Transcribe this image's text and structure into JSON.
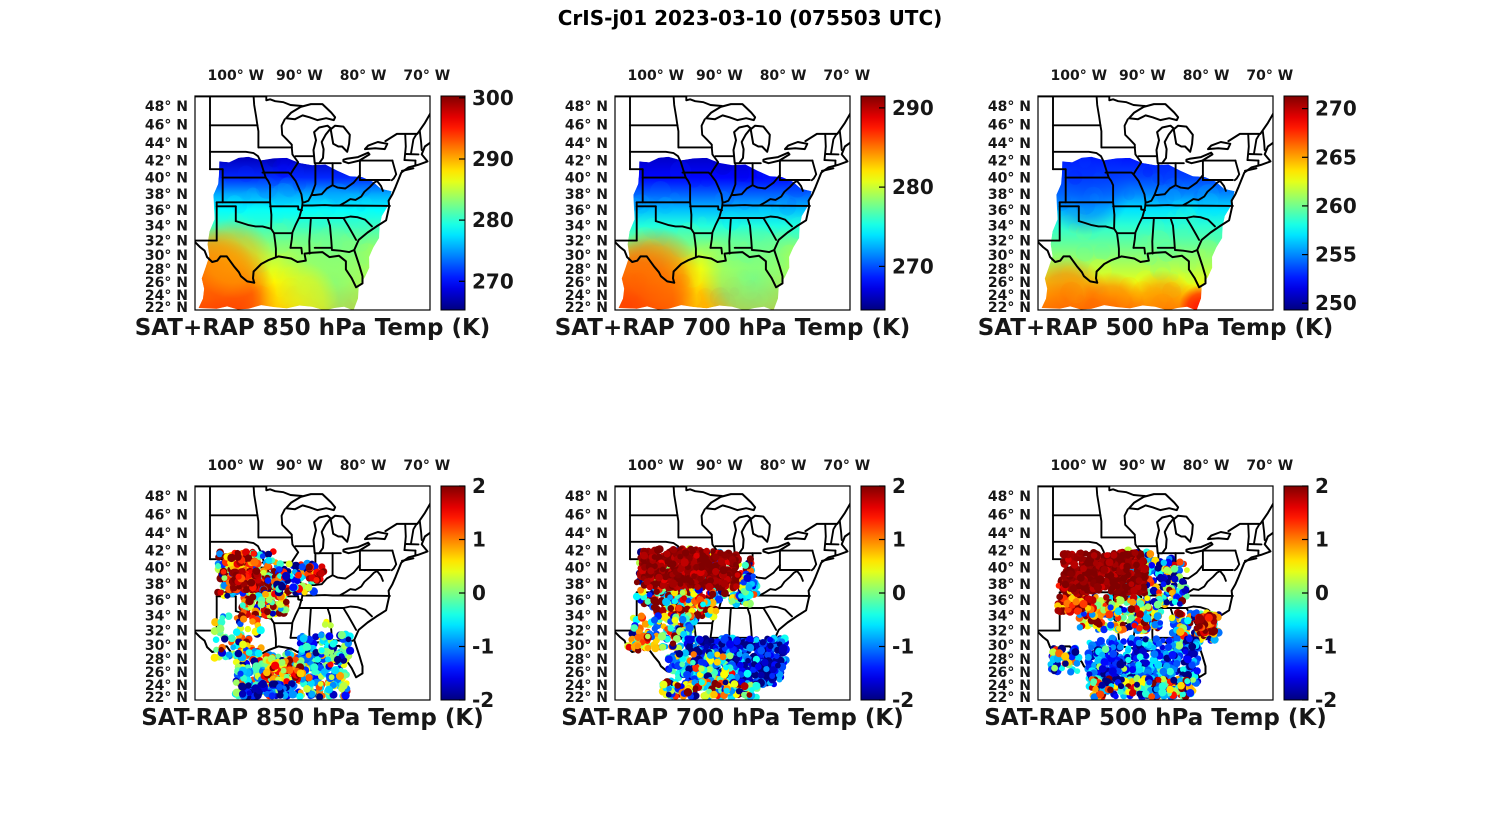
{
  "chart_data": {
    "type": "map-grid",
    "figure_title": "CrIS-j01 2023-03-10 (075503 UTC)",
    "colormap": "jet",
    "axes": {
      "lon_range_w_deg": [
        106.4,
        69.5
      ],
      "lat_range_n_deg": [
        21.5,
        49.4
      ],
      "lon_ticks": [
        {
          "value": 100,
          "label": "100° W"
        },
        {
          "value": 90,
          "label": "90° W"
        },
        {
          "value": 80,
          "label": "80° W"
        },
        {
          "value": 70,
          "label": "70° W"
        }
      ],
      "lat_ticks": [
        {
          "value": 48,
          "label": "48° N"
        },
        {
          "value": 46,
          "label": "46° N"
        },
        {
          "value": 44,
          "label": "44° N"
        },
        {
          "value": 42,
          "label": "42° N"
        },
        {
          "value": 40,
          "label": "40° N"
        },
        {
          "value": 38,
          "label": "38° N"
        },
        {
          "value": 36,
          "label": "36° N"
        },
        {
          "value": 34,
          "label": "34° N"
        },
        {
          "value": 32,
          "label": "32° N"
        },
        {
          "value": 30,
          "label": "30° N"
        },
        {
          "value": 28,
          "label": "28° N"
        },
        {
          "value": 26,
          "label": "26° N"
        },
        {
          "value": 24,
          "label": "24° N"
        },
        {
          "value": 22,
          "label": "22° N"
        }
      ]
    },
    "swath_polygon": [
      [
        102.6,
        41.9
      ],
      [
        98,
        42.3
      ],
      [
        94,
        42.25
      ],
      [
        90,
        41.9
      ],
      [
        86,
        41.3
      ],
      [
        82,
        40.4
      ],
      [
        78.5,
        39.4
      ],
      [
        75.6,
        38.4
      ],
      [
        76.8,
        35.2
      ],
      [
        78.3,
        31.0
      ],
      [
        79.8,
        26.8
      ],
      [
        81.5,
        21.7
      ],
      [
        86,
        21.8
      ],
      [
        92,
        22.1
      ],
      [
        98,
        21.9
      ],
      [
        103,
        21.7
      ],
      [
        105.5,
        21.8
      ],
      [
        105.0,
        26.5
      ],
      [
        104.2,
        31.5
      ],
      [
        103.4,
        36.5
      ]
    ],
    "panels": [
      {
        "id": "sat-plus-rap-850",
        "title": "SAT+RAP 850 hPa Temp (K)",
        "row": 0,
        "col": 0,
        "type": "field",
        "colorbar": {
          "min": 265.3,
          "max": 300.3,
          "ticks": [
            300,
            290,
            280,
            270
          ],
          "tick_labels": [
            "300",
            "290",
            "280",
            "270"
          ]
        },
        "profile": [
          [
            42.3,
            267.5
          ],
          [
            40,
            271
          ],
          [
            38,
            275.5
          ],
          [
            36,
            278.5
          ],
          [
            34,
            280.5
          ],
          [
            32,
            282.5
          ],
          [
            30,
            284.5
          ],
          [
            28,
            286
          ],
          [
            26,
            287.5
          ],
          [
            24,
            289
          ],
          [
            21.6,
            290
          ]
        ],
        "hotspots": [
          {
            "lon": 103.2,
            "lat": 23.2,
            "r": 62,
            "value": 294.5,
            "opacity": 0.95
          },
          {
            "lon": 104,
            "lat": 27.5,
            "r": 45,
            "value": 292,
            "opacity": 0.8
          },
          {
            "lon": 100.5,
            "lat": 29.5,
            "r": 40,
            "value": 290,
            "opacity": 0.65
          },
          {
            "lon": 84.5,
            "lat": 26,
            "r": 60,
            "value": 282,
            "opacity": 0.75
          },
          {
            "lon": 90,
            "lat": 23,
            "r": 40,
            "value": 287.5,
            "opacity": 0.6
          }
        ]
      },
      {
        "id": "sat-plus-rap-700",
        "title": "SAT+RAP 700 hPa Temp (K)",
        "row": 0,
        "col": 1,
        "type": "field",
        "colorbar": {
          "min": 264.5,
          "max": 291.5,
          "ticks": [
            290,
            280,
            270
          ],
          "tick_labels": [
            "290",
            "280",
            "270"
          ]
        },
        "profile": [
          [
            42.3,
            266.5
          ],
          [
            40,
            268
          ],
          [
            38,
            270.5
          ],
          [
            36,
            273
          ],
          [
            34,
            275.5
          ],
          [
            32,
            277.5
          ],
          [
            30,
            279.5
          ],
          [
            28,
            281
          ],
          [
            26,
            282
          ],
          [
            24,
            283
          ],
          [
            21.6,
            283.5
          ]
        ],
        "hotspots": [
          {
            "lon": 103,
            "lat": 23.5,
            "r": 60,
            "value": 287,
            "opacity": 0.9
          },
          {
            "lon": 100,
            "lat": 27.5,
            "r": 45,
            "value": 285,
            "opacity": 0.7
          },
          {
            "lon": 84.5,
            "lat": 26.5,
            "r": 55,
            "value": 276.5,
            "opacity": 0.7
          }
        ]
      },
      {
        "id": "sat-plus-rap-500",
        "title": "SAT+RAP 500 hPa Temp (K)",
        "row": 0,
        "col": 2,
        "type": "field",
        "colorbar": {
          "min": 249.3,
          "max": 271.3,
          "ticks": [
            270,
            265,
            260,
            255,
            250
          ],
          "tick_labels": [
            "270",
            "265",
            "260",
            "255",
            "250"
          ]
        },
        "profile": [
          [
            42.3,
            252.5
          ],
          [
            40,
            253.5
          ],
          [
            38,
            255
          ],
          [
            36,
            257
          ],
          [
            34,
            258.5
          ],
          [
            32,
            259.5
          ],
          [
            30,
            260.5
          ],
          [
            28,
            261.5
          ],
          [
            26,
            262.5
          ],
          [
            24,
            264
          ],
          [
            21.6,
            265.5
          ]
        ],
        "hotspots": [
          {
            "lon": 102,
            "lat": 23,
            "r": 45,
            "value": 266.5,
            "opacity": 0.75
          },
          {
            "lon": 95,
            "lat": 22,
            "r": 35,
            "value": 266.5,
            "opacity": 0.7
          },
          {
            "lon": 87,
            "lat": 22.3,
            "r": 35,
            "value": 266,
            "opacity": 0.65
          },
          {
            "lon": 80.8,
            "lat": 22,
            "r": 22,
            "value": 268.5,
            "opacity": 0.9
          },
          {
            "lon": 99,
            "lat": 38.5,
            "r": 45,
            "value": 253,
            "opacity": 0.5
          }
        ]
      },
      {
        "id": "sat-minus-rap-850",
        "title": "SAT-RAP 850 hPa Temp (K)",
        "row": 1,
        "col": 0,
        "type": "scatter",
        "colorbar": {
          "min": -2,
          "max": 2,
          "ticks": [
            2,
            1,
            0,
            -1,
            -2
          ],
          "tick_labels": [
            "2",
            "1",
            "0",
            "-1",
            "-2"
          ]
        },
        "clusters": [
          {
            "lat": [
              36.5,
              41.9
            ],
            "lon": [
              103,
              93.5
            ],
            "n": 220,
            "mean": 0.4,
            "sd": 1.5
          },
          {
            "lat": [
              34,
              37
            ],
            "lon": [
              99,
              92
            ],
            "n": 100,
            "mean": 1.0,
            "sd": 1.2
          },
          {
            "lat": [
              37,
              40.5
            ],
            "lon": [
              93.5,
              87.5
            ],
            "n": 80,
            "mean": -0.6,
            "sd": 1.1
          },
          {
            "lat": [
              28,
              34
            ],
            "lon": [
              103.5,
              96
            ],
            "n": 80,
            "mean": 0.1,
            "sd": 1.2
          },
          {
            "lat": [
              22,
              29
            ],
            "lon": [
              100,
              82.5
            ],
            "n": 340,
            "mean": -0.5,
            "sd": 0.9
          },
          {
            "lat": [
              27.5,
              31.5
            ],
            "lon": [
              90,
              82
            ],
            "n": 80,
            "mean": -0.9,
            "sd": 0.8
          },
          {
            "lat": [
              24.5,
              28
            ],
            "lon": [
              95.5,
              89.5
            ],
            "n": 90,
            "mean": 1.0,
            "sd": 0.7
          },
          {
            "lat": [
              22,
              24.2
            ],
            "lon": [
              99,
              91
            ],
            "n": 60,
            "mean": -1.7,
            "sd": 0.4
          },
          {
            "lat": [
              39.5,
              41.8
            ],
            "lon": [
              102,
              97
            ],
            "n": 60,
            "mean": 1.5,
            "sd": 0.8
          },
          {
            "lat": [
              37.3,
              39.6
            ],
            "lon": [
              100.5,
              96.5
            ],
            "n": 130,
            "mean": 1.9,
            "sd": 0.4
          },
          {
            "lat": [
              38.5,
              40.3
            ],
            "lon": [
              89,
              86
            ],
            "n": 20,
            "mean": 1.7,
            "sd": 0.4
          },
          {
            "lat": [
              32.6,
              33.4
            ],
            "lon": [
              86,
              85
            ],
            "n": 3,
            "mean": 0.1,
            "sd": 0.3
          }
        ]
      },
      {
        "id": "sat-minus-rap-700",
        "title": "SAT-RAP 700 hPa Temp (K)",
        "row": 1,
        "col": 1,
        "type": "scatter",
        "colorbar": {
          "min": -2,
          "max": 2,
          "ticks": [
            2,
            1,
            0,
            -1,
            -2
          ],
          "tick_labels": [
            "2",
            "1",
            "0",
            "-1",
            "-2"
          ]
        },
        "clusters": [
          {
            "lat": [
              35.5,
              42.2
            ],
            "lon": [
              103,
              85
            ],
            "n": 230,
            "mean": 0.4,
            "sd": 1.5
          },
          {
            "lat": [
              33.5,
              37.5
            ],
            "lon": [
              100.5,
              90.5
            ],
            "n": 160,
            "mean": 0.9,
            "sd": 1.2
          },
          {
            "lat": [
              29.5,
              34
            ],
            "lon": [
              104,
              94
            ],
            "n": 120,
            "mean": -0.2,
            "sd": 1.2
          },
          {
            "lat": [
              24,
              31
            ],
            "lon": [
              95,
              79.5
            ],
            "n": 470,
            "mean": -1.55,
            "sd": 0.55
          },
          {
            "lat": [
              24,
              29
            ],
            "lon": [
              98,
              88
            ],
            "n": 150,
            "mean": -0.5,
            "sd": 1.0
          },
          {
            "lat": [
              21.8,
              24.5
            ],
            "lon": [
              99,
              84
            ],
            "n": 160,
            "mean": 0.2,
            "sd": 1.4
          },
          {
            "lat": [
              36,
              39
            ],
            "lon": [
              87,
              84
            ],
            "n": 45,
            "mean": -1.0,
            "sd": 0.9
          },
          {
            "lat": [
              29,
              31.5
            ],
            "lon": [
              104.5,
              101
            ],
            "n": 30,
            "mean": 0.9,
            "sd": 0.9
          },
          {
            "lat": [
              37.6,
              42.2
            ],
            "lon": [
              102.5,
              87
            ],
            "n": 430,
            "mean": 1.95,
            "sd": 0.15
          }
        ]
      },
      {
        "id": "sat-minus-rap-500",
        "title": "SAT-RAP 500 hPa Temp (K)",
        "row": 1,
        "col": 2,
        "type": "scatter",
        "colorbar": {
          "min": -2,
          "max": 2,
          "ticks": [
            2,
            1,
            0,
            -1,
            -2
          ],
          "tick_labels": [
            "2",
            "1",
            "0",
            "-1",
            "-2"
          ]
        },
        "clusters": [
          {
            "lat": [
              35.5,
              42
            ],
            "lon": [
              92.5,
              83
            ],
            "n": 200,
            "mean": -0.4,
            "sd": 1.3
          },
          {
            "lat": [
              32,
              36.5
            ],
            "lon": [
              100.5,
              87
            ],
            "n": 200,
            "mean": 0.3,
            "sd": 1.2
          },
          {
            "lat": [
              30.5,
              34.5
            ],
            "lon": [
              85.5,
              78
            ],
            "n": 120,
            "mean": 0.1,
            "sd": 1.4
          },
          {
            "lat": [
              23.5,
              31
            ],
            "lon": [
              98.5,
              81
            ],
            "n": 470,
            "mean": -1.25,
            "sd": 0.6
          },
          {
            "lat": [
              21.8,
              25
            ],
            "lon": [
              98,
              82
            ],
            "n": 200,
            "mean": -0.1,
            "sd": 1.3
          },
          {
            "lat": [
              26,
              29.5
            ],
            "lon": [
              104.5,
              100
            ],
            "n": 50,
            "mean": -0.5,
            "sd": 1.2
          },
          {
            "lat": [
              31.5,
              34
            ],
            "lon": [
              81.5,
              78.5
            ],
            "n": 55,
            "mean": 1.7,
            "sd": 0.4
          },
          {
            "lat": [
              34.5,
              38.5
            ],
            "lon": [
              103.5,
              97.5
            ],
            "n": 110,
            "mean": 1.6,
            "sd": 0.6
          },
          {
            "lat": [
              37,
              41.8
            ],
            "lon": [
              102.5,
              89.5
            ],
            "n": 420,
            "mean": 1.95,
            "sd": 0.15
          }
        ]
      }
    ]
  }
}
